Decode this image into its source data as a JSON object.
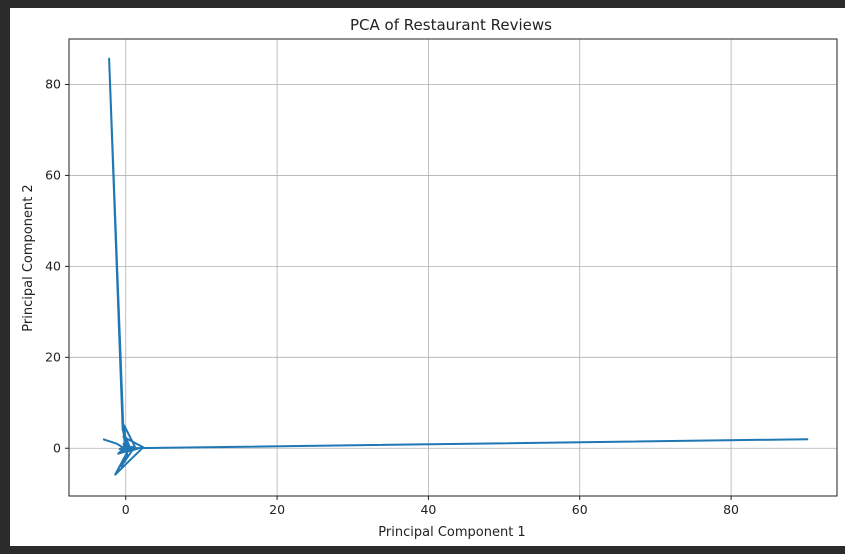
{
  "chart_data": {
    "type": "line",
    "title": "PCA of Restaurant Reviews",
    "xlabel": "Principal Component 1",
    "ylabel": "Principal Component 2",
    "xlim": [
      -7.5,
      94
    ],
    "ylim": [
      -10.5,
      90
    ],
    "xticks": [
      0,
      20,
      40,
      60,
      80
    ],
    "yticks": [
      0,
      20,
      40,
      60,
      80
    ],
    "grid": true,
    "color": "#1f77b4",
    "series": [
      {
        "x": [
          -3.0,
          -1.2,
          -0.5,
          0.6,
          -1.0,
          0.3,
          -0.8,
          1.2,
          -0.2,
          0.0,
          0.2,
          -0.6,
          0.8,
          -0.3,
          2.3,
          -1.4,
          0.4,
          -0.1,
          -0.3,
          -2.2,
          -0.4,
          0.5,
          -0.9,
          1.6,
          0.1,
          -0.3,
          0.3,
          90.2
        ],
        "y": [
          2.0,
          1.0,
          0.3,
          -0.4,
          -1.2,
          0.8,
          -0.2,
          0.4,
          5.0,
          0.0,
          -1.5,
          -4.0,
          -0.6,
          2.5,
          0.2,
          -5.8,
          -0.2,
          0.6,
          3.5,
          85.7,
          4.0,
          0.4,
          -1.0,
          -0.1,
          -0.8,
          1.0,
          0.0,
          2.0
        ]
      }
    ]
  }
}
